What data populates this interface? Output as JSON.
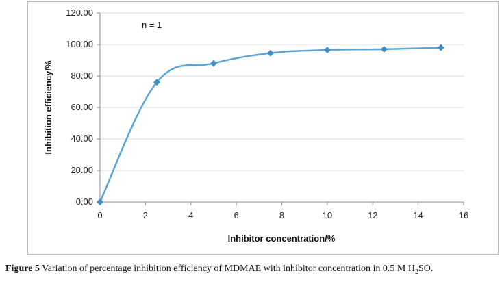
{
  "chart_data": {
    "type": "line",
    "xlabel": "Inhibitor concentration/%",
    "ylabel": "Inhibition efficiency/%",
    "xlim": [
      0,
      16
    ],
    "ylim": [
      0,
      120
    ],
    "x_ticks": [
      0,
      2,
      4,
      6,
      8,
      10,
      12,
      14,
      16
    ],
    "y_ticks": [
      "0.00",
      "20.00",
      "40.00",
      "60.00",
      "80.00",
      "100.00",
      "120.00"
    ],
    "annotation": "n = 1",
    "grid": "horizontal",
    "legend": "none",
    "line_color": "#5aa6d8",
    "marker_color": "#3f8fc4",
    "series": [
      {
        "x": [
          0,
          2.5,
          5,
          7.5,
          10,
          12.5,
          15
        ],
        "y": [
          0,
          76,
          88,
          94.5,
          96.5,
          97,
          98
        ]
      }
    ]
  },
  "caption": {
    "label": "Figure 5",
    "text_pre": "Variation of percentage inhibition efficiency of MDMAE with inhibitor concentration in 0.5 M H",
    "subscript": "2",
    "text_post": "SO."
  }
}
